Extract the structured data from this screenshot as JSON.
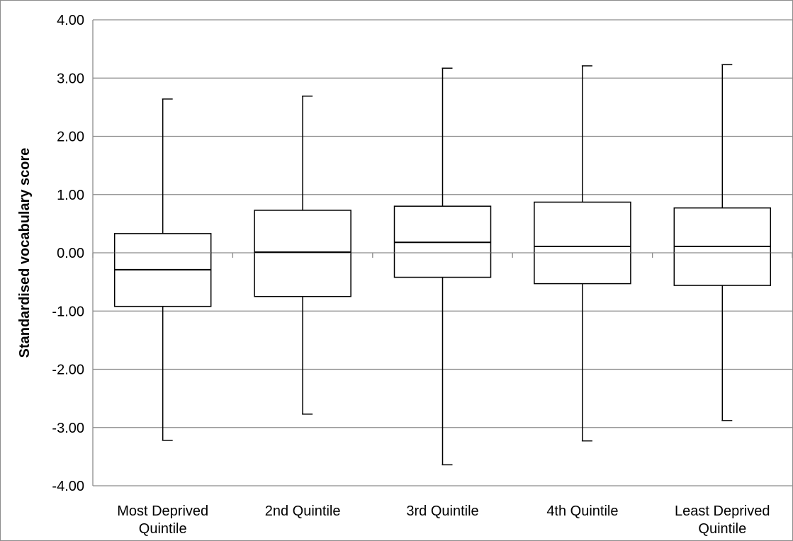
{
  "chart_data": {
    "type": "boxplot",
    "title": "",
    "xlabel": "",
    "ylabel": "Standardised vocabulary score",
    "ylim": [
      -4,
      4
    ],
    "yticks": [
      "-4.00",
      "-3.00",
      "-2.00",
      "-1.00",
      "0.00",
      "1.00",
      "2.00",
      "3.00",
      "4.00"
    ],
    "tick_values": [
      -4,
      -3,
      -2,
      -1,
      0,
      1,
      2,
      3,
      4
    ],
    "grid": true,
    "legend": "none",
    "categories": [
      [
        "Most Deprived",
        "Quintile"
      ],
      [
        "2nd Quintile"
      ],
      [
        "3rd Quintile"
      ],
      [
        "4th Quintile"
      ],
      [
        "Least Deprived",
        "Quintile"
      ]
    ],
    "boxes": [
      {
        "min": -3.22,
        "q1": -0.92,
        "median": -0.29,
        "q3": 0.33,
        "max": 2.64
      },
      {
        "min": -2.77,
        "q1": -0.75,
        "median": 0.01,
        "q3": 0.73,
        "max": 2.69
      },
      {
        "min": -3.64,
        "q1": -0.42,
        "median": 0.18,
        "q3": 0.8,
        "max": 3.17
      },
      {
        "min": -3.23,
        "q1": -0.53,
        "median": 0.11,
        "q3": 0.87,
        "max": 3.21
      },
      {
        "min": -2.88,
        "q1": -0.56,
        "median": 0.11,
        "q3": 0.77,
        "max": 3.23
      }
    ],
    "colors": {
      "box_fill": "#ffffff",
      "box_stroke": "#000000",
      "grid": "#8c8c8c",
      "axis": "#8c8c8c"
    }
  }
}
